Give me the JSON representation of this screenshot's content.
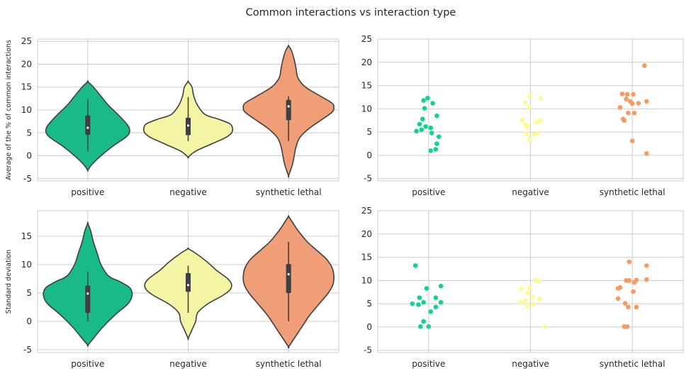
{
  "figure_title": "Common interactions vs interaction type",
  "chart_data": [
    {
      "type": "violin",
      "categories": [
        "positive",
        "negative",
        "synthetic lethal"
      ],
      "colors": [
        "#1ab98a",
        "#f4f5a4",
        "#f09e77"
      ],
      "ylabel": "Average of the % of common interactions",
      "xlabel": "",
      "ylim": [
        -5.5,
        25.5
      ],
      "yticks": [
        -5,
        0,
        5,
        10,
        15,
        20,
        25
      ],
      "grid": true,
      "violins": [
        {
          "min": -3.2,
          "max": 16.2,
          "q1": 4.6,
          "median": 6.1,
          "q3": 8.8,
          "whisker_low": 1.0,
          "whisker_high": 12.3,
          "profile": [
            [
              -3.2,
              0
            ],
            [
              -2,
              4
            ],
            [
              0,
              14
            ],
            [
              2,
              26
            ],
            [
              4,
              40
            ],
            [
              5,
              44
            ],
            [
              6,
              44
            ],
            [
              7,
              41
            ],
            [
              9,
              32
            ],
            [
              11,
              22
            ],
            [
              13,
              14
            ],
            [
              15,
              6
            ],
            [
              16.2,
              0
            ]
          ]
        },
        {
          "min": -0.3,
          "max": 16.2,
          "q1": 4.5,
          "median": 6.6,
          "q3": 8.3,
          "whisker_low": 3.2,
          "whisker_high": 12.8,
          "profile": [
            [
              -0.3,
              0
            ],
            [
              1,
              8
            ],
            [
              2.5,
              24
            ],
            [
              4,
              40
            ],
            [
              5,
              46
            ],
            [
              6,
              47
            ],
            [
              7,
              44
            ],
            [
              8,
              32
            ],
            [
              9,
              18
            ],
            [
              11,
              10
            ],
            [
              13,
              6
            ],
            [
              15,
              4
            ],
            [
              16.2,
              0
            ]
          ]
        },
        {
          "min": -4.4,
          "max": 24.0,
          "q1": 7.8,
          "median": 10.8,
          "q3": 12.2,
          "whisker_low": 3.2,
          "whisker_high": 13.0,
          "profile": [
            [
              -4.4,
              0
            ],
            [
              -2,
              4
            ],
            [
              0,
              6
            ],
            [
              2,
              8
            ],
            [
              4,
              12
            ],
            [
              6,
              22
            ],
            [
              8,
              36
            ],
            [
              9.5,
              46
            ],
            [
              10.5,
              48
            ],
            [
              11.5,
              46
            ],
            [
              13,
              34
            ],
            [
              15,
              18
            ],
            [
              17,
              10
            ],
            [
              19,
              8
            ],
            [
              21,
              6
            ],
            [
              23,
              3
            ],
            [
              24,
              0
            ]
          ]
        }
      ]
    },
    {
      "type": "scatter",
      "categories": [
        "positive",
        "negative",
        "synthetic lethal"
      ],
      "colors": [
        "#10d291",
        "#fffa8e",
        "#f89a62"
      ],
      "ylim": [
        -5.5,
        25
      ],
      "yticks": [
        -5,
        0,
        5,
        10,
        15,
        20,
        25
      ],
      "grid": true,
      "points": [
        [
          [
            -0.01,
            12.3
          ],
          [
            -0.05,
            11.8
          ],
          [
            0.04,
            11.2
          ],
          [
            -0.04,
            10.1
          ],
          [
            0.08,
            8.5
          ],
          [
            -0.06,
            7.8
          ],
          [
            -0.09,
            6.7
          ],
          [
            -0.03,
            6.2
          ],
          [
            0.02,
            5.9
          ],
          [
            -0.07,
            5.5
          ],
          [
            -0.12,
            5.2
          ],
          [
            0.03,
            4.8
          ],
          [
            0.1,
            4.0
          ],
          [
            0.08,
            2.5
          ],
          [
            0.07,
            1.3
          ],
          [
            0.02,
            1.0
          ]
        ],
        [
          [
            -0.01,
            12.8
          ],
          [
            0.1,
            12.3
          ],
          [
            -0.05,
            11.3
          ],
          [
            -0.01,
            10.3
          ],
          [
            -0.08,
            7.6
          ],
          [
            0.1,
            7.5
          ],
          [
            0.06,
            7.1
          ],
          [
            -0.05,
            6.6
          ],
          [
            -0.03,
            6.2
          ],
          [
            0.07,
            4.8
          ],
          [
            -0.04,
            4.6
          ],
          [
            0.03,
            4.5
          ],
          [
            -0.01,
            3.4
          ]
        ],
        [
          [
            0.12,
            19.3
          ],
          [
            -0.1,
            13.2
          ],
          [
            -0.05,
            13.1
          ],
          [
            0.01,
            13.1
          ],
          [
            -0.06,
            12.1
          ],
          [
            -0.02,
            11.6
          ],
          [
            0.06,
            11.2
          ],
          [
            0.14,
            11.6
          ],
          [
            0.0,
            11.1
          ],
          [
            -0.12,
            10.3
          ],
          [
            -0.04,
            9.1
          ],
          [
            0.02,
            9.1
          ],
          [
            -0.09,
            7.8
          ],
          [
            -0.08,
            7.5
          ],
          [
            0.0,
            3.1
          ],
          [
            0.14,
            0.4
          ]
        ]
      ]
    },
    {
      "type": "violin",
      "categories": [
        "positive",
        "negative",
        "synthetic lethal"
      ],
      "colors": [
        "#1ab98a",
        "#f4f5a4",
        "#f09e77"
      ],
      "ylabel": "Standard deviation",
      "xlabel": "",
      "ylim": [
        -5.5,
        19.5
      ],
      "yticks": [
        -5,
        0,
        5,
        10,
        15
      ],
      "grid": true,
      "violins": [
        {
          "min": -4.2,
          "max": 17.3,
          "q1": 1.5,
          "median": 4.9,
          "q3": 6.3,
          "whisker_low": 0.0,
          "whisker_high": 8.7,
          "profile": [
            [
              -4.2,
              0
            ],
            [
              -3,
              6
            ],
            [
              -1,
              16
            ],
            [
              1,
              28
            ],
            [
              3,
              42
            ],
            [
              4,
              46
            ],
            [
              5,
              47
            ],
            [
              6,
              44
            ],
            [
              7,
              34
            ],
            [
              8,
              22
            ],
            [
              10,
              14
            ],
            [
              12,
              10
            ],
            [
              14,
              6
            ],
            [
              16,
              3
            ],
            [
              17.3,
              0
            ]
          ]
        },
        {
          "min": -3.0,
          "max": 12.8,
          "q1": 5.2,
          "median": 6.4,
          "q3": 8.5,
          "whisker_low": 1.5,
          "whisker_high": 9.8,
          "profile": [
            [
              -3,
              0
            ],
            [
              -1.5,
              4
            ],
            [
              0,
              8
            ],
            [
              1.5,
              10
            ],
            [
              3,
              20
            ],
            [
              4.5,
              36
            ],
            [
              5.5,
              44
            ],
            [
              6.5,
              46
            ],
            [
              7.5,
              42
            ],
            [
              9,
              30
            ],
            [
              10.5,
              20
            ],
            [
              12,
              8
            ],
            [
              12.8,
              0
            ]
          ]
        },
        {
          "min": -4.5,
          "max": 18.5,
          "q1": 5.0,
          "median": 8.3,
          "q3": 10.1,
          "whisker_low": 0.0,
          "whisker_high": 14.0,
          "profile": [
            [
              -4.5,
              0
            ],
            [
              -3,
              6
            ],
            [
              -1,
              14
            ],
            [
              1,
              22
            ],
            [
              3,
              32
            ],
            [
              5,
              42
            ],
            [
              6.5,
              47
            ],
            [
              8,
              48
            ],
            [
              9.5,
              46
            ],
            [
              11,
              40
            ],
            [
              12.5,
              30
            ],
            [
              14,
              20
            ],
            [
              16,
              10
            ],
            [
              17.5,
              4
            ],
            [
              18.5,
              0
            ]
          ]
        }
      ]
    },
    {
      "type": "scatter",
      "categories": [
        "positive",
        "negative",
        "synthetic lethal"
      ],
      "colors": [
        "#10d291",
        "#fffa8e",
        "#f89a62"
      ],
      "ylim": [
        -5.5,
        25
      ],
      "yticks": [
        -5,
        0,
        5,
        10,
        15,
        20,
        25
      ],
      "grid": true,
      "points": [
        [
          [
            -0.13,
            13.2
          ],
          [
            0.12,
            8.8
          ],
          [
            -0.02,
            8.3
          ],
          [
            -0.09,
            6.3
          ],
          [
            0.07,
            6.3
          ],
          [
            -0.05,
            5.3
          ],
          [
            0.12,
            5.3
          ],
          [
            -0.16,
            5.0
          ],
          [
            -0.1,
            4.8
          ],
          [
            0.07,
            4.3
          ],
          [
            0.02,
            3.3
          ],
          [
            -0.05,
            1.2
          ],
          [
            -0.08,
            0.1
          ],
          [
            0.0,
            0.1
          ]
        ],
        [
          [
            0.05,
            10.0
          ],
          [
            0.08,
            9.8
          ],
          [
            -0.09,
            8.2
          ],
          [
            -0.01,
            8.4
          ],
          [
            -0.03,
            7.3
          ],
          [
            0.02,
            6.5
          ],
          [
            0.09,
            6.0
          ],
          [
            -0.05,
            5.7
          ],
          [
            -0.1,
            5.3
          ],
          [
            0.03,
            5.0
          ],
          [
            -0.03,
            4.6
          ],
          [
            0.14,
            0.1
          ]
        ],
        [
          [
            -0.03,
            14.0
          ],
          [
            0.14,
            13.2
          ],
          [
            0.14,
            10.2
          ],
          [
            0.04,
            10.1
          ],
          [
            -0.03,
            10.0
          ],
          [
            -0.06,
            10.0
          ],
          [
            0.02,
            9.6
          ],
          [
            -0.12,
            8.5
          ],
          [
            -0.14,
            8.3
          ],
          [
            0.01,
            7.6
          ],
          [
            -0.14,
            6.1
          ],
          [
            -0.07,
            5.1
          ],
          [
            -0.04,
            4.3
          ],
          [
            0.04,
            4.3
          ],
          [
            -0.08,
            0.1
          ],
          [
            -0.05,
            0.1
          ]
        ]
      ]
    }
  ]
}
